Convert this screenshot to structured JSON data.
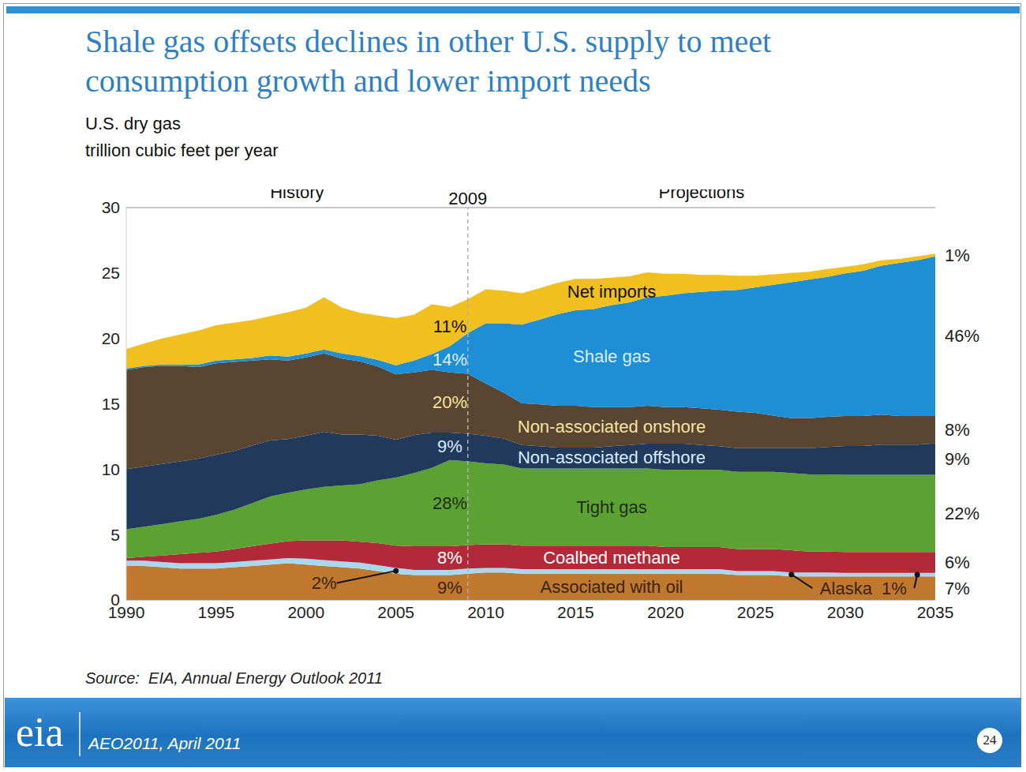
{
  "chart_data": {
    "type": "stacked_area",
    "title": "Shale gas offsets declines in other U.S. supply to meet consumption growth and lower import needs",
    "ylabel": "U.S. dry gas\ntrillion cubic feet per year",
    "x": [
      1990,
      1991,
      1992,
      1993,
      1994,
      1995,
      1996,
      1997,
      1998,
      1999,
      2000,
      2001,
      2002,
      2003,
      2004,
      2005,
      2006,
      2007,
      2008,
      2009,
      2010,
      2011,
      2012,
      2013,
      2014,
      2015,
      2016,
      2017,
      2018,
      2019,
      2020,
      2021,
      2022,
      2023,
      2024,
      2025,
      2026,
      2027,
      2028,
      2029,
      2030,
      2031,
      2032,
      2033,
      2034,
      2035
    ],
    "xlim": [
      1990,
      2035
    ],
    "xticks": [
      1990,
      1995,
      2000,
      2005,
      2010,
      2015,
      2020,
      2025,
      2030,
      2035
    ],
    "ylim": [
      0,
      30
    ],
    "yticks": [
      0,
      5,
      10,
      15,
      20,
      25,
      30
    ],
    "grid": false,
    "stacked": true,
    "series": [
      {
        "name": "Associated with oil",
        "color": "#c0782e",
        "label_x": 2017,
        "values": [
          2.6,
          2.6,
          2.5,
          2.4,
          2.4,
          2.4,
          2.5,
          2.6,
          2.7,
          2.8,
          2.7,
          2.6,
          2.5,
          2.4,
          2.2,
          2.0,
          1.9,
          1.9,
          1.9,
          2.0,
          2.1,
          2.1,
          2.0,
          2.0,
          2.0,
          2.0,
          2.0,
          2.0,
          2.0,
          2.0,
          2.0,
          2.0,
          2.0,
          2.0,
          1.9,
          1.9,
          1.9,
          1.8,
          1.8,
          1.8,
          1.8,
          1.8,
          1.8,
          1.8,
          1.8,
          1.8
        ]
      },
      {
        "name": "Alaska",
        "color": "#a6d8f0",
        "values": [
          0.4,
          0.4,
          0.4,
          0.4,
          0.4,
          0.4,
          0.4,
          0.4,
          0.4,
          0.4,
          0.45,
          0.45,
          0.45,
          0.45,
          0.45,
          0.45,
          0.4,
          0.4,
          0.4,
          0.4,
          0.35,
          0.35,
          0.35,
          0.35,
          0.35,
          0.35,
          0.35,
          0.35,
          0.35,
          0.35,
          0.35,
          0.35,
          0.35,
          0.35,
          0.3,
          0.3,
          0.3,
          0.3,
          0.3,
          0.3,
          0.27,
          0.27,
          0.27,
          0.27,
          0.27,
          0.27
        ]
      },
      {
        "name": "Coalbed methane",
        "color": "#b22a3a",
        "label_x": 2017,
        "values": [
          0.2,
          0.3,
          0.5,
          0.7,
          0.8,
          0.9,
          1.0,
          1.1,
          1.2,
          1.3,
          1.4,
          1.5,
          1.6,
          1.6,
          1.7,
          1.7,
          1.8,
          1.8,
          1.8,
          1.8,
          1.8,
          1.8,
          1.8,
          1.8,
          1.8,
          1.8,
          1.8,
          1.8,
          1.8,
          1.8,
          1.7,
          1.7,
          1.7,
          1.7,
          1.7,
          1.7,
          1.7,
          1.7,
          1.6,
          1.6,
          1.6,
          1.6,
          1.6,
          1.6,
          1.6,
          1.6
        ]
      },
      {
        "name": "Tight gas",
        "color": "#5ca232",
        "label_x": 2017,
        "values": [
          2.2,
          2.3,
          2.4,
          2.5,
          2.6,
          2.8,
          3.0,
          3.3,
          3.6,
          3.7,
          3.9,
          4.1,
          4.2,
          4.4,
          4.8,
          5.2,
          5.6,
          6.0,
          6.6,
          6.4,
          6.2,
          6.1,
          5.9,
          5.9,
          5.9,
          5.9,
          5.9,
          5.9,
          5.9,
          5.9,
          5.9,
          5.9,
          5.9,
          5.9,
          5.9,
          5.9,
          5.9,
          5.9,
          5.9,
          5.9,
          5.9,
          5.9,
          5.9,
          5.9,
          5.9,
          5.9
        ]
      },
      {
        "name": "Non-associated offshore",
        "color": "#213a5c",
        "label_x": 2017,
        "values": [
          4.6,
          4.6,
          4.6,
          4.6,
          4.6,
          4.6,
          4.5,
          4.4,
          4.3,
          4.1,
          4.1,
          4.2,
          3.9,
          3.8,
          3.4,
          2.9,
          2.9,
          2.7,
          2.1,
          2.1,
          2.1,
          2.0,
          1.8,
          1.7,
          1.6,
          1.6,
          1.6,
          1.7,
          1.8,
          1.9,
          2.0,
          2.0,
          1.9,
          1.8,
          1.8,
          1.8,
          1.8,
          1.9,
          2.0,
          2.1,
          2.2,
          2.2,
          2.3,
          2.3,
          2.3,
          2.4
        ]
      },
      {
        "name": "Non-associated onshore",
        "color": "#5a4630",
        "label_x": 2017,
        "values": [
          7.6,
          7.6,
          7.5,
          7.3,
          7.0,
          7.0,
          6.8,
          6.5,
          6.2,
          6.0,
          6.0,
          6.0,
          5.8,
          5.6,
          5.3,
          5.0,
          4.8,
          4.8,
          4.6,
          4.6,
          4.0,
          3.5,
          3.2,
          3.2,
          3.2,
          3.2,
          3.1,
          3.0,
          2.9,
          2.9,
          2.8,
          2.8,
          2.8,
          2.8,
          2.8,
          2.7,
          2.5,
          2.3,
          2.3,
          2.3,
          2.3,
          2.3,
          2.3,
          2.2,
          2.2,
          2.1
        ]
      },
      {
        "name": "Shale gas",
        "color": "#1e8ed6",
        "label_x": 2017,
        "values": [
          0.1,
          0.1,
          0.1,
          0.1,
          0.2,
          0.2,
          0.2,
          0.2,
          0.3,
          0.3,
          0.3,
          0.3,
          0.4,
          0.4,
          0.5,
          0.7,
          0.9,
          1.2,
          2.0,
          3.1,
          4.6,
          5.3,
          6.0,
          6.5,
          7.0,
          7.3,
          7.5,
          7.8,
          8.0,
          8.3,
          8.5,
          8.7,
          8.9,
          9.1,
          9.3,
          9.6,
          10.0,
          10.4,
          10.6,
          10.7,
          10.9,
          11.1,
          11.4,
          11.7,
          11.9,
          12.2
        ]
      },
      {
        "name": "Net imports",
        "color": "#f2c01e",
        "label_x": 2017,
        "values": [
          1.5,
          1.7,
          2.0,
          2.3,
          2.6,
          2.7,
          2.8,
          2.9,
          3.0,
          3.4,
          3.5,
          4.0,
          3.5,
          3.3,
          3.4,
          3.6,
          3.5,
          3.8,
          3.0,
          2.6,
          2.6,
          2.5,
          2.4,
          2.4,
          2.4,
          2.4,
          2.3,
          2.1,
          2.0,
          1.9,
          1.7,
          1.5,
          1.3,
          1.2,
          1.1,
          0.9,
          0.8,
          0.7,
          0.6,
          0.6,
          0.5,
          0.5,
          0.4,
          0.3,
          0.3,
          0.2
        ]
      }
    ],
    "divider": {
      "x": 2009,
      "label": "2009",
      "left_label": "History",
      "right_label": "Projections"
    },
    "annotations": [
      {
        "text": "11%",
        "x": 2008,
        "series": "Net imports"
      },
      {
        "text": "14%",
        "x": 2008,
        "series": "Shale gas"
      },
      {
        "text": "20%",
        "x": 2008,
        "series": "Non-associated onshore"
      },
      {
        "text": "9%",
        "x": 2008,
        "series": "Non-associated offshore"
      },
      {
        "text": "28%",
        "x": 2008,
        "series": "Tight gas"
      },
      {
        "text": "8%",
        "x": 2008,
        "series": "Coalbed methane"
      },
      {
        "text": "9%",
        "x": 2008,
        "series": "Associated with oil"
      },
      {
        "text": "2%",
        "x": 2001,
        "series": "Associated with oil",
        "arrow_to": [
          {
            "x": 2005,
            "series": "Alaska"
          }
        ]
      },
      {
        "text": "Alaska  1%",
        "x": 2031,
        "series": "Associated with oil",
        "arrow_to": [
          {
            "x": 2027,
            "series": "Alaska"
          },
          {
            "x": 2034,
            "series": "Alaska"
          }
        ]
      },
      {
        "text": "1%",
        "x": 2035,
        "series": "Net imports"
      },
      {
        "text": "46%",
        "x": 2035,
        "series": "Shale gas"
      },
      {
        "text": "8%",
        "x": 2035,
        "series": "Non-associated onshore"
      },
      {
        "text": "9%",
        "x": 2035,
        "series": "Non-associated offshore"
      },
      {
        "text": "22%",
        "x": 2035,
        "series": "Tight gas"
      },
      {
        "text": "6%",
        "x": 2035,
        "series": "Coalbed methane"
      },
      {
        "text": "7%",
        "x": 2035,
        "series": "Associated with oil"
      }
    ],
    "source": "Source:  EIA, Annual Energy Outlook 2011",
    "logo": "eia",
    "footer": "AEO2011, April 2011",
    "page_number": "24"
  }
}
